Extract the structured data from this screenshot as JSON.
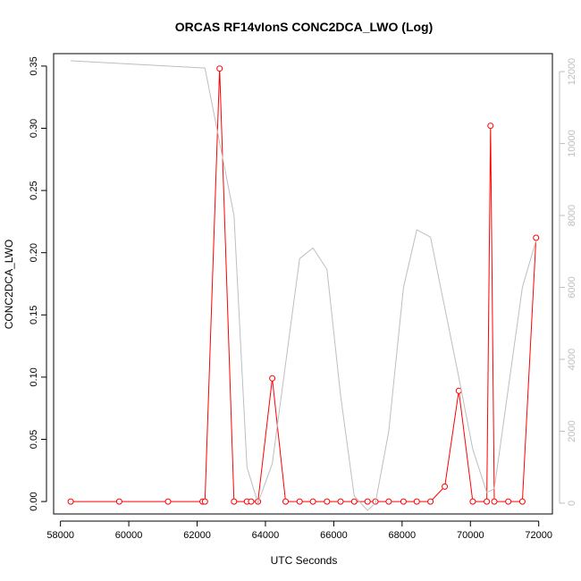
{
  "chart_data": {
    "type": "line",
    "title": "ORCAS RF14vIonS CONC2DCA_LWO (Log)",
    "xlabel": "UTC Seconds",
    "ylabel": "CONC2DCA_LWO",
    "xlim": [
      57800,
      72400
    ],
    "ylim": [
      -0.01,
      0.36
    ],
    "y2lim": [
      -300,
      12500
    ],
    "x_ticks": [
      58000,
      60000,
      62000,
      64000,
      66000,
      68000,
      70000,
      72000
    ],
    "y_ticks": [
      0.0,
      0.05,
      0.1,
      0.15,
      0.2,
      0.25,
      0.3,
      0.35
    ],
    "y2_ticks": [
      0,
      2000,
      4000,
      6000,
      8000,
      10000,
      12000
    ],
    "colors": {
      "primary": "#ff0000",
      "secondary": "#bebebe",
      "axis": "#000000"
    },
    "series": [
      {
        "axis": "left",
        "style": "line-points",
        "x": [
          58300,
          59720,
          61150,
          62160,
          62230,
          62660,
          63080,
          63460,
          63580,
          63780,
          64200,
          64590,
          65000,
          65390,
          65800,
          66200,
          66600,
          66990,
          67220,
          67610,
          68040,
          68430,
          68830,
          69250,
          69660,
          70070,
          70480,
          70590,
          70700,
          71110,
          71520,
          71920
        ],
        "y": [
          0,
          0,
          0,
          0,
          0,
          0.348,
          0,
          0,
          0,
          0,
          0.099,
          0,
          0,
          0,
          0,
          0,
          0,
          0,
          0,
          0,
          0,
          0,
          0,
          0.012,
          0.089,
          0,
          0,
          0.302,
          0,
          0,
          0,
          0.212
        ]
      },
      {
        "axis": "right",
        "style": "line",
        "x": [
          58300,
          62230,
          63080,
          63460,
          63780,
          64200,
          65000,
          65390,
          65800,
          66200,
          66600,
          66990,
          67220,
          67610,
          68040,
          68430,
          68830,
          69660,
          70070,
          70480,
          70700,
          71520,
          71920
        ],
        "y": [
          12300,
          12100,
          8000,
          1000,
          0,
          1100,
          6800,
          7100,
          6500,
          3000,
          200,
          -200,
          0,
          2000,
          6000,
          7600,
          7400,
          3500,
          1500,
          300,
          400,
          6000,
          7300
        ]
      }
    ]
  }
}
